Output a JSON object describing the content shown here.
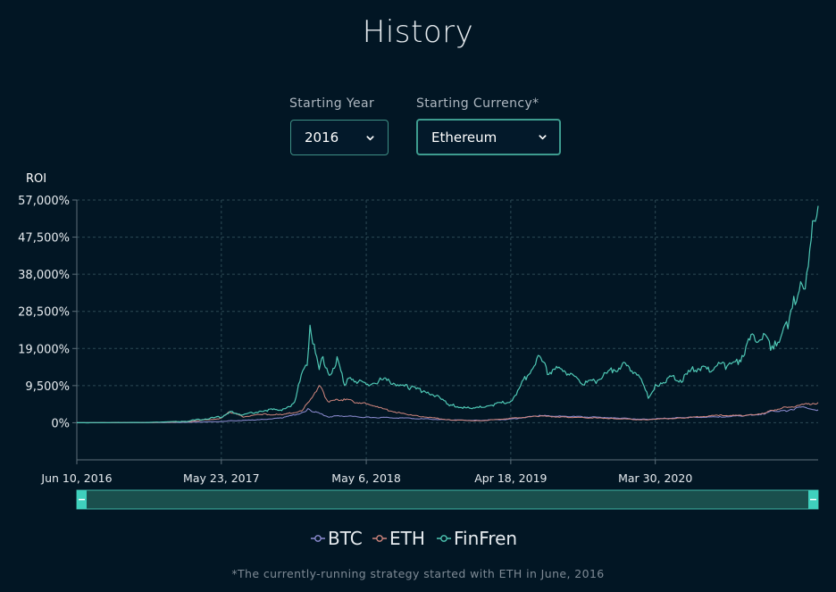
{
  "title": "History",
  "controls": {
    "year_label": "Starting Year",
    "year_value": "2016",
    "currency_label": "Starting Currency*",
    "currency_value": "Ethereum"
  },
  "footnote": "*The currently-running strategy started with ETH in June, 2016",
  "colors": {
    "btc": "#8f8ed4",
    "eth": "#d2877e",
    "finfren": "#4fc8b5",
    "accent": "#3e8f85"
  },
  "chart_data": {
    "type": "line",
    "ylabel": "ROI",
    "ylim": [
      -9500,
      57000
    ],
    "yticks": [
      0,
      9500,
      19000,
      28500,
      38000,
      47500,
      57000
    ],
    "ytick_labels": [
      "0%",
      "9,500%",
      "19,000%",
      "28,500%",
      "38,000%",
      "47,500%",
      "57,000%"
    ],
    "xlim": [
      "2016-06-10",
      "2021-04-25"
    ],
    "xticks": [
      "2016-06-10",
      "2017-05-23",
      "2018-05-06",
      "2019-04-18",
      "2020-03-30"
    ],
    "xtick_labels": [
      "Jun 10, 2016",
      "May 23, 2017",
      "May 6, 2018",
      "Apr 18, 2019",
      "Mar 30, 2020"
    ],
    "grid": true,
    "legend_position": "bottom",
    "series": [
      {
        "name": "BTC",
        "x": [
          "2016-06-10",
          "2016-12-01",
          "2017-03-01",
          "2017-05-23",
          "2017-06-15",
          "2017-08-15",
          "2017-10-15",
          "2017-12-01",
          "2017-12-17",
          "2018-01-05",
          "2018-02-06",
          "2018-03-01",
          "2018-05-06",
          "2018-08-01",
          "2018-11-25",
          "2019-02-01",
          "2019-04-18",
          "2019-06-26",
          "2019-09-01",
          "2019-12-15",
          "2020-03-13",
          "2020-03-30",
          "2020-06-01",
          "2020-09-01",
          "2020-11-01",
          "2020-12-15",
          "2021-01-08",
          "2021-02-01",
          "2021-03-14",
          "2021-04-25"
        ],
        "y": [
          0,
          20,
          100,
          300,
          500,
          700,
          1200,
          2500,
          3400,
          2700,
          1500,
          1800,
          1400,
          1200,
          700,
          600,
          900,
          1800,
          1600,
          1300,
          800,
          1000,
          1300,
          1500,
          1800,
          2300,
          3000,
          3000,
          3900,
          3300
        ]
      },
      {
        "name": "ETH",
        "x": [
          "2016-06-10",
          "2016-12-01",
          "2017-03-01",
          "2017-05-23",
          "2017-06-12",
          "2017-07-15",
          "2017-09-01",
          "2017-10-15",
          "2017-12-01",
          "2017-12-20",
          "2018-01-13",
          "2018-02-06",
          "2018-03-01",
          "2018-05-06",
          "2018-06-15",
          "2018-08-15",
          "2018-11-25",
          "2019-02-01",
          "2019-04-18",
          "2019-06-26",
          "2019-09-01",
          "2019-12-15",
          "2020-03-13",
          "2020-03-30",
          "2020-06-01",
          "2020-09-01",
          "2020-11-01",
          "2020-12-15",
          "2021-01-08",
          "2021-02-01",
          "2021-03-14",
          "2021-04-25"
        ],
        "y": [
          0,
          40,
          250,
          1100,
          2800,
          1500,
          2200,
          2000,
          3000,
          5500,
          9400,
          5200,
          6000,
          5000,
          3500,
          2000,
          700,
          500,
          1100,
          1700,
          1400,
          1100,
          700,
          900,
          1200,
          1900,
          1800,
          2500,
          3300,
          3800,
          4500,
          5200
        ]
      },
      {
        "name": "FinFren",
        "x": [
          "2016-06-10",
          "2016-12-01",
          "2017-03-01",
          "2017-05-23",
          "2017-06-12",
          "2017-07-15",
          "2017-09-01",
          "2017-10-15",
          "2017-11-15",
          "2017-12-01",
          "2017-12-15",
          "2017-12-22",
          "2018-01-01",
          "2018-01-13",
          "2018-01-22",
          "2018-02-06",
          "2018-02-25",
          "2018-03-15",
          "2018-04-01",
          "2018-05-06",
          "2018-06-15",
          "2018-08-15",
          "2018-10-01",
          "2018-11-25",
          "2019-01-15",
          "2019-03-01",
          "2019-04-18",
          "2019-05-15",
          "2019-06-26",
          "2019-07-15",
          "2019-08-15",
          "2019-09-15",
          "2019-10-15",
          "2019-11-15",
          "2019-12-15",
          "2020-01-15",
          "2020-02-15",
          "2020-03-13",
          "2020-03-30",
          "2020-05-01",
          "2020-06-01",
          "2020-07-01",
          "2020-08-01",
          "2020-09-01",
          "2020-09-15",
          "2020-10-15",
          "2020-11-15",
          "2020-12-15",
          "2021-01-01",
          "2021-01-15",
          "2021-02-01",
          "2021-02-15",
          "2021-03-01",
          "2021-03-14",
          "2021-03-25",
          "2021-04-05",
          "2021-04-15",
          "2021-04-25"
        ],
        "y": [
          0,
          80,
          400,
          1500,
          2800,
          2000,
          3200,
          3400,
          5000,
          12000,
          15000,
          24000,
          19000,
          14000,
          17000,
          12000,
          16000,
          10000,
          11500,
          9500,
          11000,
          9000,
          8000,
          4500,
          3500,
          4500,
          5500,
          10000,
          17000,
          13000,
          14000,
          12000,
          10000,
          11000,
          13500,
          14500,
          13000,
          6500,
          9500,
          11500,
          11000,
          14000,
          13500,
          15000,
          14500,
          15500,
          21500,
          22000,
          19500,
          20500,
          24000,
          26000,
          32000,
          36500,
          34000,
          43000,
          52000,
          55500
        ]
      }
    ]
  }
}
